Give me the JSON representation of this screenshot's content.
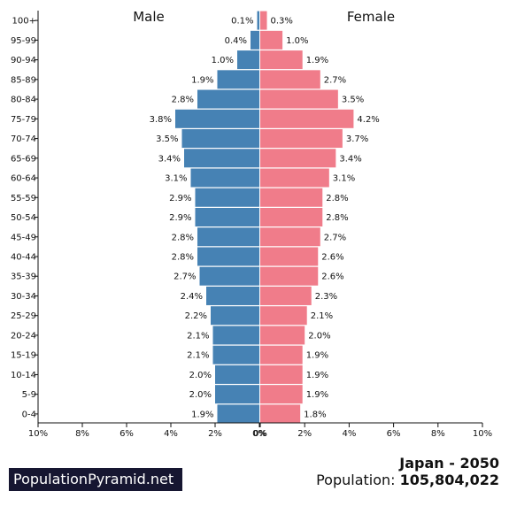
{
  "chart_data": {
    "type": "bar",
    "orientation": "horizontal-pyramid",
    "categories": [
      "100+",
      "95-99",
      "90-94",
      "85-89",
      "80-84",
      "75-79",
      "70-74",
      "65-69",
      "60-64",
      "55-59",
      "50-54",
      "45-49",
      "40-44",
      "35-39",
      "30-34",
      "25-29",
      "20-24",
      "15-19",
      "10-14",
      "5-9",
      "0-4"
    ],
    "series": [
      {
        "name": "Male",
        "color": "#4682b4",
        "values": [
          0.1,
          0.4,
          1.0,
          1.9,
          2.8,
          3.8,
          3.5,
          3.4,
          3.1,
          2.9,
          2.9,
          2.8,
          2.8,
          2.7,
          2.4,
          2.2,
          2.1,
          2.1,
          2.0,
          2.0,
          1.9
        ],
        "labels": [
          "0.1%",
          "0.4%",
          "1.0%",
          "1.9%",
          "2.8%",
          "3.8%",
          "3.5%",
          "3.4%",
          "3.1%",
          "2.9%",
          "2.9%",
          "2.8%",
          "2.8%",
          "2.7%",
          "2.4%",
          "2.2%",
          "2.1%",
          "2.1%",
          "2.0%",
          "2.0%",
          "1.9%"
        ]
      },
      {
        "name": "Female",
        "color": "#f07c8a",
        "values": [
          0.3,
          1.0,
          1.9,
          2.7,
          3.5,
          4.2,
          3.7,
          3.4,
          3.1,
          2.8,
          2.8,
          2.7,
          2.6,
          2.6,
          2.3,
          2.1,
          2.0,
          1.9,
          1.9,
          1.9,
          1.8
        ],
        "labels": [
          "0.3%",
          "1.0%",
          "1.9%",
          "2.7%",
          "3.5%",
          "4.2%",
          "3.7%",
          "3.4%",
          "3.1%",
          "2.8%",
          "2.8%",
          "2.7%",
          "2.6%",
          "2.6%",
          "2.3%",
          "2.1%",
          "2.0%",
          "1.9%",
          "1.9%",
          "1.9%",
          "1.8%"
        ]
      }
    ],
    "xlim": [
      0,
      10
    ],
    "xticks_left": [
      "10%",
      "8%",
      "6%",
      "4%",
      "2%",
      "0%"
    ],
    "xticks_right": [
      "0%",
      "2%",
      "4%",
      "6%",
      "8%",
      "10%"
    ],
    "grid": false
  },
  "brand": "PopulationPyramid.net",
  "country_year": "Japan - 2050",
  "population_label": "Population:",
  "population_value": "105,804,022"
}
